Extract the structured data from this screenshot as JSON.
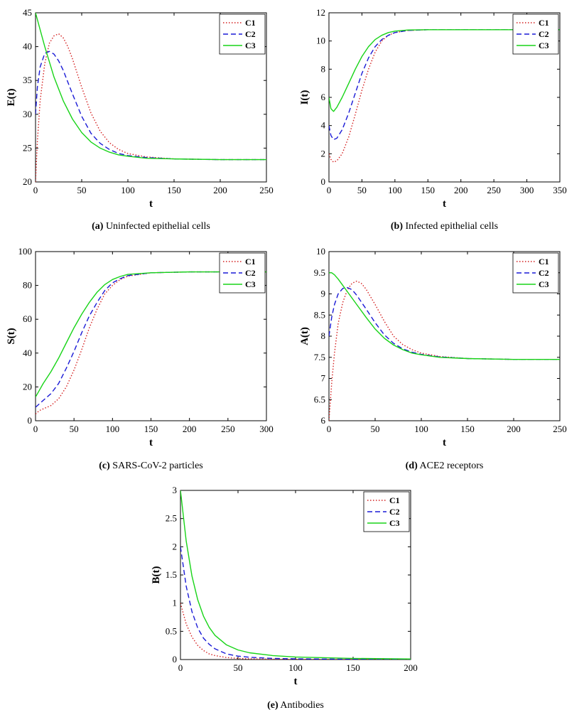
{
  "colors": {
    "C1": "#d42020",
    "C2": "#1a1ad6",
    "C3": "#18d418",
    "axis": "#000000",
    "background": "#ffffff"
  },
  "legend": {
    "labels": [
      "C1",
      "C2",
      "C3"
    ],
    "placement": "top-right"
  },
  "chart_data": [
    {
      "id": "a",
      "type": "line",
      "caption_letter": "(a)",
      "caption_text": "Uninfected epithelial cells",
      "xlabel": "t",
      "ylabel": "E(t)",
      "xlim": [
        0,
        250
      ],
      "ylim": [
        20,
        45
      ],
      "xticks": [
        0,
        50,
        100,
        150,
        200,
        250
      ],
      "yticks": [
        20,
        25,
        30,
        35,
        40,
        45
      ],
      "series": [
        {
          "name": "C1",
          "style": "dotted",
          "x": [
            0,
            2,
            5,
            10,
            15,
            20,
            25,
            30,
            35,
            40,
            50,
            60,
            70,
            80,
            90,
            100,
            120,
            150,
            200,
            250
          ],
          "y": [
            20,
            26,
            32,
            37.5,
            40.5,
            41.6,
            41.9,
            41.3,
            40.0,
            38.2,
            34.0,
            30.2,
            27.5,
            25.8,
            24.8,
            24.2,
            23.7,
            23.4,
            23.3,
            23.3
          ]
        },
        {
          "name": "C2",
          "style": "dashed",
          "x": [
            0,
            2,
            5,
            10,
            15,
            20,
            25,
            30,
            40,
            50,
            60,
            70,
            80,
            90,
            100,
            120,
            150,
            200,
            250
          ],
          "y": [
            30,
            34,
            37,
            39,
            39.3,
            38.9,
            37.9,
            36.5,
            33.0,
            29.7,
            27.2,
            25.7,
            24.8,
            24.2,
            23.9,
            23.6,
            23.4,
            23.3,
            23.3
          ]
        },
        {
          "name": "C3",
          "style": "solid",
          "x": [
            0,
            5,
            10,
            20,
            30,
            40,
            50,
            60,
            70,
            80,
            90,
            100,
            120,
            150,
            200,
            250
          ],
          "y": [
            45,
            42.5,
            40.0,
            35.5,
            32.0,
            29.3,
            27.3,
            25.9,
            25.0,
            24.4,
            24.0,
            23.8,
            23.5,
            23.4,
            23.3,
            23.3
          ]
        }
      ]
    },
    {
      "id": "b",
      "type": "line",
      "caption_letter": "(b)",
      "caption_text": "Infected epithelial cells",
      "xlabel": "t",
      "ylabel": "I(t)",
      "xlim": [
        0,
        350
      ],
      "ylim": [
        0,
        12
      ],
      "xticks": [
        0,
        50,
        100,
        150,
        200,
        250,
        300,
        350
      ],
      "yticks": [
        0,
        2,
        4,
        6,
        8,
        10,
        12
      ],
      "series": [
        {
          "name": "C1",
          "style": "dotted",
          "x": [
            0,
            3,
            7,
            12,
            20,
            30,
            40,
            50,
            60,
            70,
            80,
            90,
            100,
            120,
            150,
            200,
            250,
            300,
            350
          ],
          "y": [
            2,
            1.6,
            1.4,
            1.5,
            2.0,
            3.2,
            4.8,
            6.5,
            8.0,
            9.2,
            10.0,
            10.4,
            10.6,
            10.75,
            10.8,
            10.8,
            10.8,
            10.8,
            10.8
          ]
        },
        {
          "name": "C2",
          "style": "dashed",
          "x": [
            0,
            3,
            7,
            12,
            20,
            30,
            40,
            50,
            60,
            70,
            80,
            90,
            100,
            120,
            150,
            200,
            250,
            300,
            350
          ],
          "y": [
            4,
            3.3,
            3.0,
            3.1,
            3.7,
            4.9,
            6.3,
            7.7,
            8.8,
            9.6,
            10.1,
            10.4,
            10.6,
            10.75,
            10.8,
            10.8,
            10.8,
            10.8,
            10.8
          ]
        },
        {
          "name": "C3",
          "style": "solid",
          "x": [
            0,
            3,
            7,
            12,
            20,
            30,
            40,
            50,
            60,
            70,
            80,
            90,
            100,
            120,
            150,
            200,
            250,
            300,
            350
          ],
          "y": [
            6,
            5.2,
            5.0,
            5.3,
            6.0,
            7.0,
            8.0,
            8.9,
            9.6,
            10.1,
            10.4,
            10.6,
            10.7,
            10.78,
            10.8,
            10.8,
            10.8,
            10.8,
            10.8
          ]
        }
      ]
    },
    {
      "id": "c",
      "type": "line",
      "caption_letter": "(c)",
      "caption_text": "SARS-CoV-2 particles",
      "xlabel": "t",
      "ylabel": "S(t)",
      "xlim": [
        0,
        300
      ],
      "ylim": [
        0,
        100
      ],
      "xticks": [
        0,
        50,
        100,
        150,
        200,
        250,
        300
      ],
      "yticks": [
        0,
        20,
        40,
        60,
        80,
        100
      ],
      "series": [
        {
          "name": "C1",
          "style": "dotted",
          "x": [
            0,
            5,
            10,
            20,
            30,
            40,
            50,
            60,
            70,
            80,
            90,
            100,
            110,
            120,
            150,
            200,
            250,
            300
          ],
          "y": [
            4,
            6,
            7,
            9,
            13,
            20,
            30,
            42,
            55,
            66,
            75,
            80,
            83.5,
            85.5,
            87.5,
            88,
            88,
            88
          ]
        },
        {
          "name": "C2",
          "style": "dashed",
          "x": [
            0,
            5,
            10,
            20,
            30,
            40,
            50,
            60,
            70,
            80,
            90,
            100,
            110,
            120,
            150,
            200,
            250,
            300
          ],
          "y": [
            8,
            10,
            12,
            16,
            22,
            31,
            41,
            52,
            62,
            70,
            77,
            81.5,
            84,
            85.8,
            87.5,
            88,
            88,
            88
          ]
        },
        {
          "name": "C3",
          "style": "solid",
          "x": [
            0,
            5,
            10,
            20,
            30,
            40,
            50,
            60,
            70,
            80,
            90,
            100,
            110,
            120,
            150,
            200,
            250,
            300
          ],
          "y": [
            14,
            18,
            22,
            29,
            37,
            46,
            55,
            63,
            70,
            76,
            80.5,
            83.5,
            85.3,
            86.5,
            87.5,
            88,
            88,
            88
          ]
        }
      ]
    },
    {
      "id": "d",
      "type": "line",
      "caption_letter": "(d)",
      "caption_text": "ACE2 receptors",
      "xlabel": "t",
      "ylabel": "A(t)",
      "xlim": [
        0,
        250
      ],
      "ylim": [
        6,
        10
      ],
      "xticks": [
        0,
        50,
        100,
        150,
        200,
        250
      ],
      "yticks": [
        6,
        6.5,
        7,
        7.5,
        8,
        8.5,
        9,
        9.5,
        10
      ],
      "series": [
        {
          "name": "C1",
          "style": "dotted",
          "x": [
            0,
            3,
            6,
            10,
            15,
            20,
            25,
            30,
            35,
            40,
            50,
            60,
            70,
            80,
            90,
            100,
            120,
            150,
            200,
            250
          ],
          "y": [
            6,
            6.9,
            7.6,
            8.3,
            8.8,
            9.1,
            9.25,
            9.3,
            9.25,
            9.12,
            8.75,
            8.35,
            8.0,
            7.8,
            7.68,
            7.6,
            7.52,
            7.47,
            7.45,
            7.45
          ]
        },
        {
          "name": "C2",
          "style": "dashed",
          "x": [
            0,
            3,
            6,
            10,
            15,
            20,
            25,
            30,
            40,
            50,
            60,
            70,
            80,
            90,
            100,
            120,
            150,
            200,
            250
          ],
          "y": [
            8,
            8.45,
            8.75,
            9.0,
            9.13,
            9.15,
            9.1,
            8.97,
            8.65,
            8.32,
            8.03,
            7.83,
            7.7,
            7.62,
            7.57,
            7.51,
            7.47,
            7.45,
            7.45
          ]
        },
        {
          "name": "C3",
          "style": "solid",
          "x": [
            0,
            3,
            6,
            10,
            15,
            20,
            30,
            40,
            50,
            60,
            70,
            80,
            90,
            100,
            120,
            150,
            200,
            250
          ],
          "y": [
            9.5,
            9.5,
            9.45,
            9.35,
            9.2,
            9.05,
            8.75,
            8.45,
            8.17,
            7.95,
            7.79,
            7.68,
            7.6,
            7.56,
            7.5,
            7.47,
            7.45,
            7.45
          ]
        }
      ]
    },
    {
      "id": "e",
      "type": "line",
      "caption_letter": "(e)",
      "caption_text": "Antibodies",
      "xlabel": "t",
      "ylabel": "B(t)",
      "xlim": [
        0,
        200
      ],
      "ylim": [
        0,
        3
      ],
      "xticks": [
        0,
        50,
        100,
        150,
        200
      ],
      "yticks": [
        0,
        0.5,
        1,
        1.5,
        2,
        2.5,
        3
      ],
      "series": [
        {
          "name": "C1",
          "style": "dotted",
          "x": [
            0,
            5,
            10,
            15,
            20,
            25,
            30,
            40,
            50,
            60,
            80,
            100,
            150,
            200
          ],
          "y": [
            1,
            0.63,
            0.4,
            0.25,
            0.16,
            0.1,
            0.07,
            0.035,
            0.02,
            0.012,
            0.006,
            0.004,
            0.002,
            0.001
          ]
        },
        {
          "name": "C2",
          "style": "dashed",
          "x": [
            0,
            5,
            10,
            15,
            20,
            25,
            30,
            40,
            50,
            60,
            80,
            100,
            150,
            200
          ],
          "y": [
            2,
            1.3,
            0.85,
            0.56,
            0.38,
            0.27,
            0.19,
            0.1,
            0.06,
            0.04,
            0.02,
            0.012,
            0.005,
            0.002
          ]
        },
        {
          "name": "C3",
          "style": "solid",
          "x": [
            0,
            5,
            10,
            15,
            20,
            25,
            30,
            40,
            50,
            60,
            80,
            100,
            150,
            200
          ],
          "y": [
            3,
            2.1,
            1.48,
            1.06,
            0.77,
            0.57,
            0.43,
            0.26,
            0.17,
            0.12,
            0.07,
            0.045,
            0.02,
            0.01
          ]
        }
      ]
    }
  ]
}
